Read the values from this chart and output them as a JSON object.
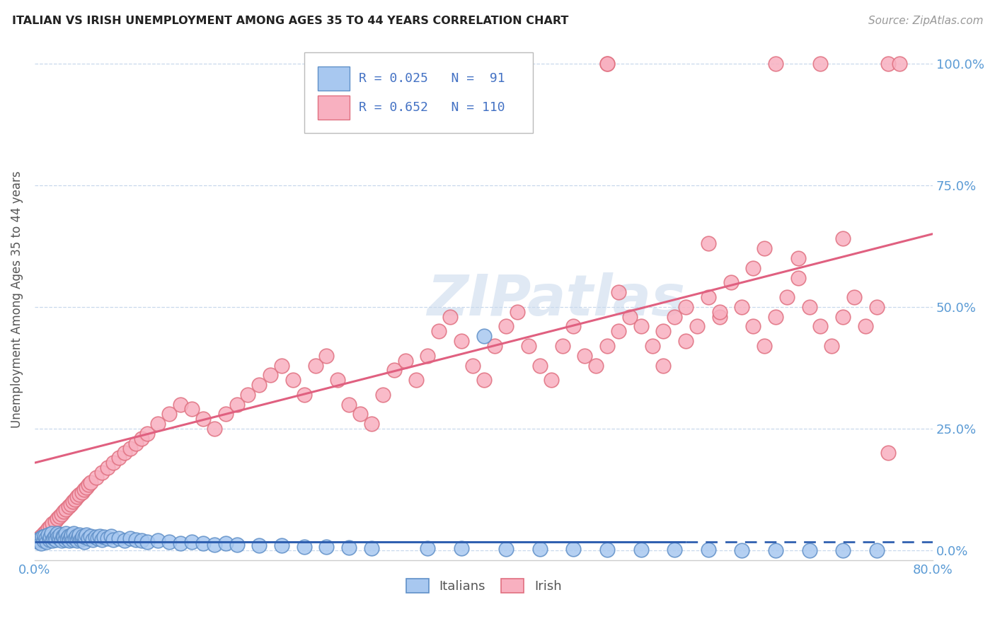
{
  "title": "ITALIAN VS IRISH UNEMPLOYMENT AMONG AGES 35 TO 44 YEARS CORRELATION CHART",
  "source": "Source: ZipAtlas.com",
  "ylabel": "Unemployment Among Ages 35 to 44 years",
  "ytick_labels": [
    "0.0%",
    "25.0%",
    "50.0%",
    "75.0%",
    "100.0%"
  ],
  "ytick_values": [
    0.0,
    0.25,
    0.5,
    0.75,
    1.0
  ],
  "xmin": 0.0,
  "xmax": 0.8,
  "ymin": -0.02,
  "ymax": 1.05,
  "legend_R_italian": "0.025",
  "legend_N_italian": "91",
  "legend_R_irish": "0.652",
  "legend_N_irish": "110",
  "watermark": "ZIPatlas",
  "italian_face": "#a8c8f0",
  "italian_edge": "#6090c8",
  "irish_face": "#f8b0c0",
  "irish_edge": "#e07080",
  "italian_line_color": "#3060b0",
  "irish_line_color": "#e06080",
  "background_color": "#ffffff",
  "grid_color": "#c8d8ec",
  "axis_label_color": "#5b9bd5",
  "title_color": "#222222",
  "legend_text_color": "#4472c4",
  "legend_label_color": "#555555",
  "italian_x": [
    0.002,
    0.003,
    0.004,
    0.005,
    0.006,
    0.007,
    0.008,
    0.009,
    0.01,
    0.011,
    0.012,
    0.013,
    0.014,
    0.015,
    0.016,
    0.017,
    0.018,
    0.019,
    0.02,
    0.021,
    0.022,
    0.023,
    0.024,
    0.025,
    0.026,
    0.027,
    0.028,
    0.029,
    0.03,
    0.031,
    0.032,
    0.033,
    0.034,
    0.035,
    0.036,
    0.037,
    0.038,
    0.039,
    0.04,
    0.041,
    0.042,
    0.043,
    0.044,
    0.045,
    0.046,
    0.048,
    0.05,
    0.052,
    0.054,
    0.056,
    0.058,
    0.06,
    0.062,
    0.065,
    0.068,
    0.07,
    0.075,
    0.08,
    0.085,
    0.09,
    0.095,
    0.1,
    0.11,
    0.12,
    0.13,
    0.14,
    0.15,
    0.16,
    0.17,
    0.18,
    0.2,
    0.22,
    0.24,
    0.26,
    0.28,
    0.3,
    0.35,
    0.38,
    0.42,
    0.45,
    0.48,
    0.51,
    0.54,
    0.57,
    0.6,
    0.63,
    0.66,
    0.69,
    0.72,
    0.75,
    0.4
  ],
  "italian_y": [
    0.02,
    0.018,
    0.022,
    0.025,
    0.015,
    0.028,
    0.02,
    0.03,
    0.025,
    0.018,
    0.032,
    0.022,
    0.028,
    0.035,
    0.02,
    0.025,
    0.03,
    0.022,
    0.035,
    0.028,
    0.025,
    0.032,
    0.02,
    0.03,
    0.028,
    0.022,
    0.035,
    0.025,
    0.03,
    0.02,
    0.028,
    0.032,
    0.022,
    0.035,
    0.025,
    0.03,
    0.02,
    0.028,
    0.032,
    0.022,
    0.025,
    0.03,
    0.018,
    0.028,
    0.032,
    0.025,
    0.03,
    0.022,
    0.028,
    0.025,
    0.03,
    0.022,
    0.028,
    0.025,
    0.03,
    0.022,
    0.025,
    0.02,
    0.025,
    0.022,
    0.02,
    0.018,
    0.02,
    0.018,
    0.015,
    0.018,
    0.015,
    0.012,
    0.015,
    0.012,
    0.01,
    0.01,
    0.008,
    0.008,
    0.006,
    0.005,
    0.005,
    0.004,
    0.003,
    0.003,
    0.003,
    0.002,
    0.002,
    0.002,
    0.002,
    0.001,
    0.001,
    0.001,
    0.001,
    0.001,
    0.44
  ],
  "irish_x": [
    0.002,
    0.004,
    0.006,
    0.008,
    0.01,
    0.012,
    0.014,
    0.016,
    0.018,
    0.02,
    0.022,
    0.024,
    0.026,
    0.028,
    0.03,
    0.032,
    0.034,
    0.036,
    0.038,
    0.04,
    0.042,
    0.044,
    0.046,
    0.048,
    0.05,
    0.055,
    0.06,
    0.065,
    0.07,
    0.075,
    0.08,
    0.085,
    0.09,
    0.095,
    0.1,
    0.11,
    0.12,
    0.13,
    0.14,
    0.15,
    0.16,
    0.17,
    0.18,
    0.19,
    0.2,
    0.21,
    0.22,
    0.23,
    0.24,
    0.25,
    0.26,
    0.27,
    0.28,
    0.29,
    0.3,
    0.31,
    0.32,
    0.33,
    0.34,
    0.35,
    0.36,
    0.37,
    0.38,
    0.39,
    0.4,
    0.41,
    0.42,
    0.43,
    0.44,
    0.45,
    0.46,
    0.47,
    0.48,
    0.49,
    0.5,
    0.51,
    0.52,
    0.53,
    0.54,
    0.55,
    0.56,
    0.57,
    0.58,
    0.59,
    0.6,
    0.61,
    0.62,
    0.63,
    0.64,
    0.65,
    0.66,
    0.67,
    0.68,
    0.69,
    0.7,
    0.71,
    0.72,
    0.73,
    0.74,
    0.75,
    0.6,
    0.64,
    0.68,
    0.72,
    0.76,
    0.65,
    0.52,
    0.56,
    0.58,
    0.61
  ],
  "irish_y": [
    0.02,
    0.025,
    0.03,
    0.035,
    0.04,
    0.045,
    0.05,
    0.055,
    0.06,
    0.065,
    0.07,
    0.075,
    0.08,
    0.085,
    0.09,
    0.095,
    0.1,
    0.105,
    0.11,
    0.115,
    0.12,
    0.125,
    0.13,
    0.135,
    0.14,
    0.15,
    0.16,
    0.17,
    0.18,
    0.19,
    0.2,
    0.21,
    0.22,
    0.23,
    0.24,
    0.26,
    0.28,
    0.3,
    0.29,
    0.27,
    0.25,
    0.28,
    0.3,
    0.32,
    0.34,
    0.36,
    0.38,
    0.35,
    0.32,
    0.38,
    0.4,
    0.35,
    0.3,
    0.28,
    0.26,
    0.32,
    0.37,
    0.39,
    0.35,
    0.4,
    0.45,
    0.48,
    0.43,
    0.38,
    0.35,
    0.42,
    0.46,
    0.49,
    0.42,
    0.38,
    0.35,
    0.42,
    0.46,
    0.4,
    0.38,
    0.42,
    0.45,
    0.48,
    0.46,
    0.42,
    0.45,
    0.48,
    0.5,
    0.46,
    0.52,
    0.48,
    0.55,
    0.5,
    0.46,
    0.42,
    0.48,
    0.52,
    0.56,
    0.5,
    0.46,
    0.42,
    0.48,
    0.52,
    0.46,
    0.5,
    0.63,
    0.58,
    0.6,
    0.64,
    0.2,
    0.62,
    0.53,
    0.38,
    0.43,
    0.49
  ],
  "irish_outlier_x": [
    0.51,
    0.51,
    0.66,
    0.7,
    0.76,
    0.77
  ],
  "irish_outlier_y": [
    1.0,
    1.0,
    1.0,
    1.0,
    1.0,
    1.0
  ],
  "italian_trend_x0": 0.0,
  "italian_trend_x1": 0.58,
  "italian_trend_x2": 0.8,
  "italian_trend_y": 0.018,
  "irish_trend_x0": 0.0,
  "irish_trend_x1": 0.8,
  "irish_trend_y0": 0.18,
  "irish_trend_y1": 0.65
}
